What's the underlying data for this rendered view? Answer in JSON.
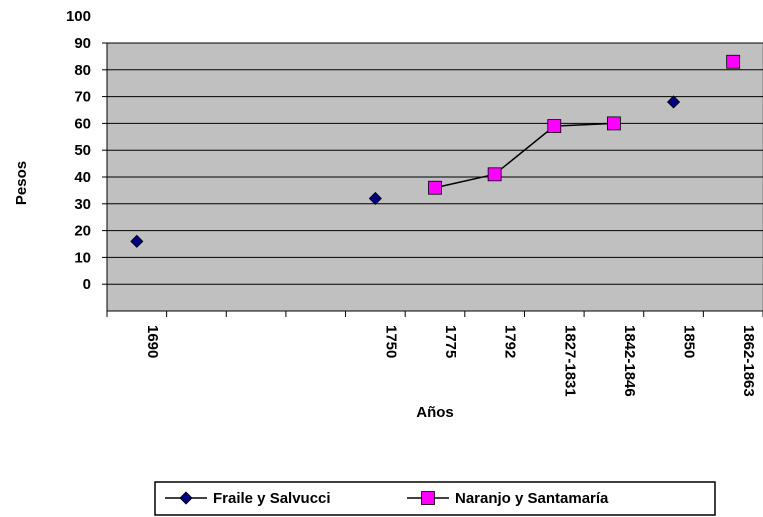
{
  "chart_data": {
    "type": "line",
    "x_label": "Años",
    "y_label": "Pesos",
    "categories": [
      "1690",
      null,
      null,
      null,
      "1750",
      "1775",
      "1792",
      "1827-1831",
      "1842-1846",
      "1850",
      "1862-1863"
    ],
    "series": [
      {
        "name": "Fraile y Salvucci",
        "color": "#000080",
        "marker": "diamond",
        "values": [
          16,
          null,
          null,
          null,
          32,
          null,
          null,
          null,
          null,
          68,
          null
        ]
      },
      {
        "name": "Naranjo y Santamaría",
        "color": "#ff00ff",
        "marker": "square",
        "values": [
          null,
          null,
          null,
          null,
          null,
          36,
          41,
          59,
          60,
          null,
          83
        ]
      }
    ],
    "ylim": [
      -10,
      90
    ],
    "yticks": [
      0,
      10,
      20,
      30,
      40,
      50,
      60,
      70,
      80,
      90,
      100
    ],
    "grid": true
  }
}
